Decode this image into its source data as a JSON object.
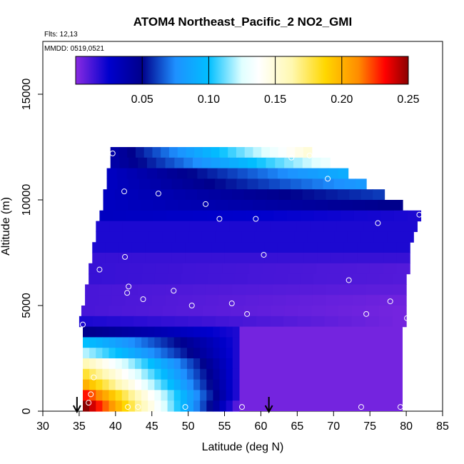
{
  "chart_data": {
    "type": "heatmap",
    "title": "ATOM4 Northeast_Pacific_2 NO2_GMI",
    "flights_label": "Flts: 12,13",
    "dates_label": "MMDD: 0519,0521",
    "xlabel": "Latitude (deg N)",
    "ylabel": "Altitude (m)",
    "xlim": [
      30,
      85
    ],
    "ylim": [
      0,
      17500
    ],
    "x_ticks": [
      "30",
      "35",
      "40",
      "45",
      "50",
      "55",
      "60",
      "65",
      "70",
      "75",
      "80",
      "85"
    ],
    "y_ticks": [
      "0",
      "5000",
      "10000",
      "15000"
    ],
    "colorbar": {
      "range": [
        0,
        0.25
      ],
      "tick_labels": [
        "0.05",
        "0.10",
        "0.15",
        "0.20",
        "0.25"
      ],
      "tick_values": [
        0.05,
        0.1,
        0.15,
        0.2,
        0.25
      ]
    },
    "colormap": [
      "#8a2be2",
      "#0000cd",
      "#00008b",
      "#1e90ff",
      "#00bfff",
      "#e0ffff",
      "#ffffff",
      "#fff8b0",
      "#ffd700",
      "#ff8c00",
      "#ff0000",
      "#8b0000"
    ],
    "curtain_cells": [
      {
        "x0": 39.3,
        "x1": 67.0,
        "y0": 12000,
        "y1": 12500,
        "v0": 0.04,
        "v1": 0.15
      },
      {
        "x0": 39.3,
        "x1": 69.5,
        "y0": 11500,
        "y1": 12000,
        "v0": 0.04,
        "v1": 0.13
      },
      {
        "x0": 38.8,
        "x1": 72.0,
        "y0": 11000,
        "y1": 11500,
        "v0": 0.03,
        "v1": 0.09
      },
      {
        "x0": 38.8,
        "x1": 74.5,
        "y0": 10500,
        "y1": 11000,
        "v0": 0.03,
        "v1": 0.08
      },
      {
        "x0": 38.3,
        "x1": 77.0,
        "y0": 10000,
        "y1": 10500,
        "v0": 0.03,
        "v1": 0.06
      },
      {
        "x0": 38.3,
        "x1": 79.5,
        "y0": 9500,
        "y1": 10000,
        "v0": 0.03,
        "v1": 0.05
      },
      {
        "x0": 37.8,
        "x1": 82.0,
        "y0": 9000,
        "y1": 9500,
        "v0": 0.03,
        "v1": 0.02
      },
      {
        "x0": 37.3,
        "x1": 81.5,
        "y0": 8500,
        "y1": 9000,
        "v0": 0.02,
        "v1": 0.02
      },
      {
        "x0": 37.3,
        "x1": 81.0,
        "y0": 8000,
        "y1": 8500,
        "v0": 0.02,
        "v1": 0.02
      },
      {
        "x0": 36.8,
        "x1": 80.5,
        "y0": 7500,
        "y1": 8000,
        "v0": 0.02,
        "v1": 0.02
      },
      {
        "x0": 36.8,
        "x1": 80.5,
        "y0": 7000,
        "y1": 7500,
        "v0": 0.015,
        "v1": 0.015
      },
      {
        "x0": 36.3,
        "x1": 80.5,
        "y0": 6500,
        "y1": 7000,
        "v0": 0.015,
        "v1": 0.01
      },
      {
        "x0": 36.3,
        "x1": 80.0,
        "y0": 6000,
        "y1": 6500,
        "v0": 0.015,
        "v1": 0.01
      },
      {
        "x0": 35.8,
        "x1": 80.0,
        "y0": 5500,
        "y1": 6000,
        "v0": 0.012,
        "v1": 0.008
      },
      {
        "x0": 35.8,
        "x1": 80.0,
        "y0": 5000,
        "y1": 5500,
        "v0": 0.012,
        "v1": 0.005
      },
      {
        "x0": 35.3,
        "x1": 80.0,
        "y0": 4500,
        "y1": 5000,
        "v0": 0.012,
        "v1": 0.004
      },
      {
        "x0": 35.0,
        "x1": 80.0,
        "y0": 4000,
        "y1": 4500,
        "v0": 0.02,
        "v1": 0.004
      }
    ],
    "low_level_block": [
      {
        "x0": 35.5,
        "x1": 57.0,
        "y0": 3500,
        "y1": 4000,
        "v0": 0.05,
        "v1": 0.02
      },
      {
        "x0": 35.5,
        "x1": 57.0,
        "y0": 3000,
        "y1": 3500,
        "v0": 0.1,
        "v1": 0.02
      },
      {
        "x0": 35.5,
        "x1": 57.0,
        "y0": 2500,
        "y1": 3000,
        "v0": 0.12,
        "v1": 0.02
      },
      {
        "x0": 35.5,
        "x1": 57.0,
        "y0": 2000,
        "y1": 2500,
        "v0": 0.16,
        "v1": 0.02
      },
      {
        "x0": 35.5,
        "x1": 57.0,
        "y0": 1500,
        "y1": 2000,
        "v0": 0.18,
        "v1": 0.02
      },
      {
        "x0": 35.5,
        "x1": 57.0,
        "y0": 1000,
        "y1": 1500,
        "v0": 0.2,
        "v1": 0.02
      },
      {
        "x0": 35.5,
        "x1": 57.0,
        "y0": 500,
        "y1": 1000,
        "v0": 0.23,
        "v1": 0.02
      },
      {
        "x0": 35.5,
        "x1": 57.0,
        "y0": 0,
        "y1": 500,
        "v0": 0.25,
        "v1": 0.01
      }
    ],
    "right_low_block": [
      {
        "x0": 57.0,
        "x1": 79.5,
        "y0": 0,
        "y1": 4000,
        "v": 0.004
      }
    ],
    "sample_points": [
      {
        "x": 39.6,
        "y": 12200
      },
      {
        "x": 64.2,
        "y": 12000
      },
      {
        "x": 66.7,
        "y": 12100
      },
      {
        "x": 69.2,
        "y": 11000
      },
      {
        "x": 41.2,
        "y": 10400
      },
      {
        "x": 45.9,
        "y": 10300
      },
      {
        "x": 52.4,
        "y": 9800
      },
      {
        "x": 54.3,
        "y": 9100
      },
      {
        "x": 59.3,
        "y": 9100
      },
      {
        "x": 76.1,
        "y": 8900
      },
      {
        "x": 81.8,
        "y": 9300
      },
      {
        "x": 41.3,
        "y": 7300
      },
      {
        "x": 60.4,
        "y": 7400
      },
      {
        "x": 37.8,
        "y": 6700
      },
      {
        "x": 72.1,
        "y": 6200
      },
      {
        "x": 41.8,
        "y": 5900
      },
      {
        "x": 41.6,
        "y": 5600
      },
      {
        "x": 48.0,
        "y": 5700
      },
      {
        "x": 43.8,
        "y": 5300
      },
      {
        "x": 50.5,
        "y": 5000
      },
      {
        "x": 56.0,
        "y": 5100
      },
      {
        "x": 58.1,
        "y": 4600
      },
      {
        "x": 74.5,
        "y": 4600
      },
      {
        "x": 77.8,
        "y": 5200
      },
      {
        "x": 80.1,
        "y": 4400
      },
      {
        "x": 35.5,
        "y": 4100
      },
      {
        "x": 37.0,
        "y": 1600
      },
      {
        "x": 36.6,
        "y": 800
      },
      {
        "x": 36.3,
        "y": 400
      },
      {
        "x": 41.7,
        "y": 200
      },
      {
        "x": 43.1,
        "y": 200
      },
      {
        "x": 49.6,
        "y": 200
      },
      {
        "x": 57.4,
        "y": 200
      },
      {
        "x": 73.8,
        "y": 200
      },
      {
        "x": 79.2,
        "y": 200
      }
    ],
    "arrows_x": [
      34.7,
      61.1
    ]
  }
}
